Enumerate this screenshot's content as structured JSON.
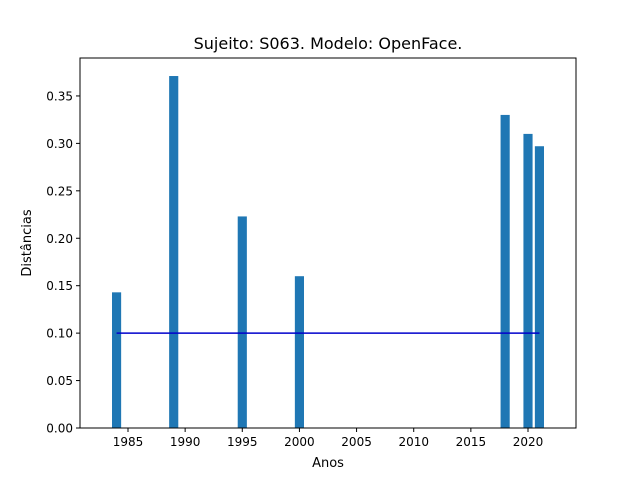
{
  "chart_data": {
    "type": "bar",
    "title": "Sujeito: S063. Modelo: OpenFace.",
    "xlabel": "Anos",
    "ylabel": "Distâncias",
    "x": [
      1984,
      1989,
      1995,
      2000,
      2018,
      2020,
      2021
    ],
    "values": [
      0.143,
      0.371,
      0.223,
      0.16,
      0.33,
      0.31,
      0.297
    ],
    "threshold": {
      "value": 0.1,
      "x_range": [
        1984,
        2021
      ],
      "color": "#0000cc"
    },
    "xlim": [
      1980.8,
      2024.2
    ],
    "ylim": [
      0,
      0.39
    ],
    "xticks": [
      1985,
      1990,
      1995,
      2000,
      2005,
      2010,
      2015,
      2020
    ],
    "yticks": [
      0.0,
      0.05,
      0.1,
      0.15,
      0.2,
      0.25,
      0.3,
      0.35
    ],
    "ytick_labels": [
      "0.00",
      "0.05",
      "0.10",
      "0.15",
      "0.20",
      "0.25",
      "0.30",
      "0.35"
    ],
    "bar_color": "#1f77b4",
    "grid": false
  }
}
